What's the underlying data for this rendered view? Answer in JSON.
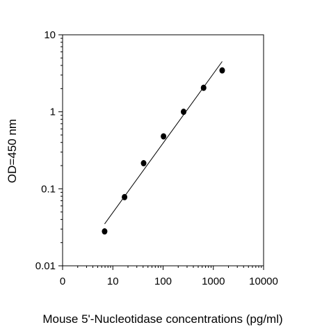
{
  "chart_data": {
    "type": "scatter",
    "title": "",
    "xlabel": "Mouse 5'-Nucleotidase concentrations (pg/ml)",
    "ylabel": "OD=450 nm",
    "xscale": "log",
    "yscale": "log",
    "xlim": [
      1,
      10000
    ],
    "ylim": [
      0.01,
      10
    ],
    "x_tick_labels": [
      "0",
      "10",
      "100",
      "1000",
      "10000"
    ],
    "y_tick_labels": [
      "0.01",
      "0.1",
      "1",
      "10"
    ],
    "grid": false,
    "legend": "none",
    "series": [
      {
        "points": [
          {
            "x": 6.86,
            "y": 0.028
          },
          {
            "x": 17.1,
            "y": 0.078
          },
          {
            "x": 41.0,
            "y": 0.215
          },
          {
            "x": 102,
            "y": 0.48
          },
          {
            "x": 256,
            "y": 1.0
          },
          {
            "x": 640,
            "y": 2.05
          },
          {
            "x": 1500,
            "y": 3.45
          }
        ]
      }
    ],
    "fit_line": {
      "points": [
        {
          "x": 6.86,
          "y": 0.035
        },
        {
          "x": 1500,
          "y": 4.5
        }
      ]
    },
    "colors": {
      "marker": "#000000",
      "line": "#000000",
      "axis": "#000000"
    }
  }
}
